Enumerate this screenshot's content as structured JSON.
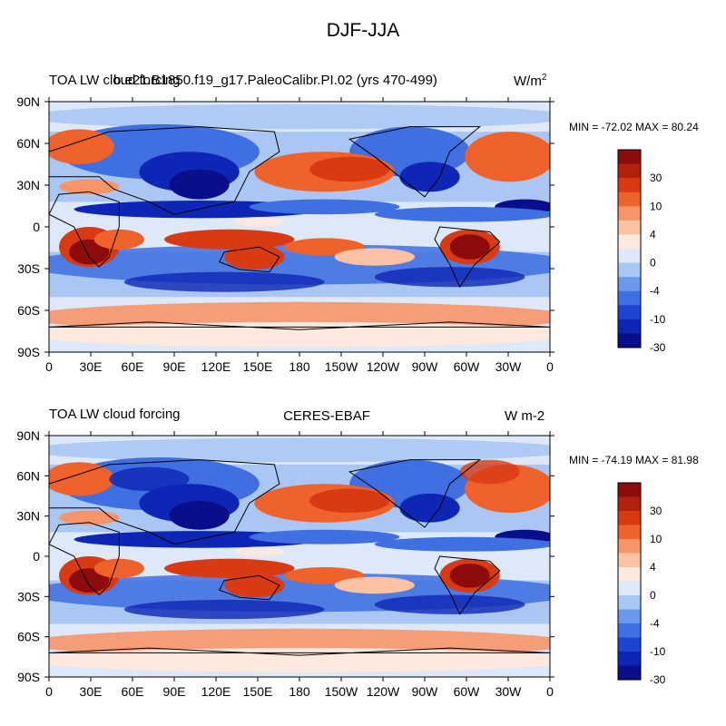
{
  "figure": {
    "title": "DJF-JJA"
  },
  "axes": {
    "x_ticks": [
      "0",
      "30E",
      "60E",
      "90E",
      "120E",
      "150E",
      "180",
      "150W",
      "120W",
      "90W",
      "60W",
      "30W",
      "0"
    ],
    "y_ticks": [
      "90N",
      "60N",
      "30N",
      "0",
      "30S",
      "60S",
      "90S"
    ]
  },
  "panels": [
    {
      "left_label": "TOA LW cloud forcing",
      "center_label": "b.e21.B1850.f19_g17.PaleoCalibr.PI.02 (yrs 470-499)",
      "units": "W/m²",
      "minmax": "MIN = -72.02 MAX =  80.24"
    },
    {
      "left_label": "TOA LW cloud forcing",
      "center_label": "CERES-EBAF",
      "units": "W m-2",
      "minmax": "MIN = -74.19 MAX =  81.98"
    }
  ],
  "colorbar": {
    "labels": [
      "30",
      "10",
      "4",
      "0",
      "-4",
      "-10",
      "-30"
    ],
    "colors": [
      "#b2210d",
      "#d83a14",
      "#f0622c",
      "#f7946a",
      "#fbc3a4",
      "#fde9dd",
      "#dde8f8",
      "#aac6f2",
      "#6b99ea",
      "#3f6fe0",
      "#1c46d1",
      "#0e26b5",
      "#0a0e8a"
    ],
    "top_color": "#8c0c0c"
  },
  "map_colors": {
    "strong_red": "#8c0c0c",
    "red": "#d83a14",
    "orange": "#f0622c",
    "light_orange": "#f7946a",
    "pink": "#fbc3a4",
    "pale": "#fde9dd",
    "pale_blue": "#dde8f8",
    "light_blue": "#aac6f2",
    "blue": "#3f6fe0",
    "deep_blue": "#0e26b5",
    "navy": "#0a0e8a",
    "coast": "#000000"
  }
}
